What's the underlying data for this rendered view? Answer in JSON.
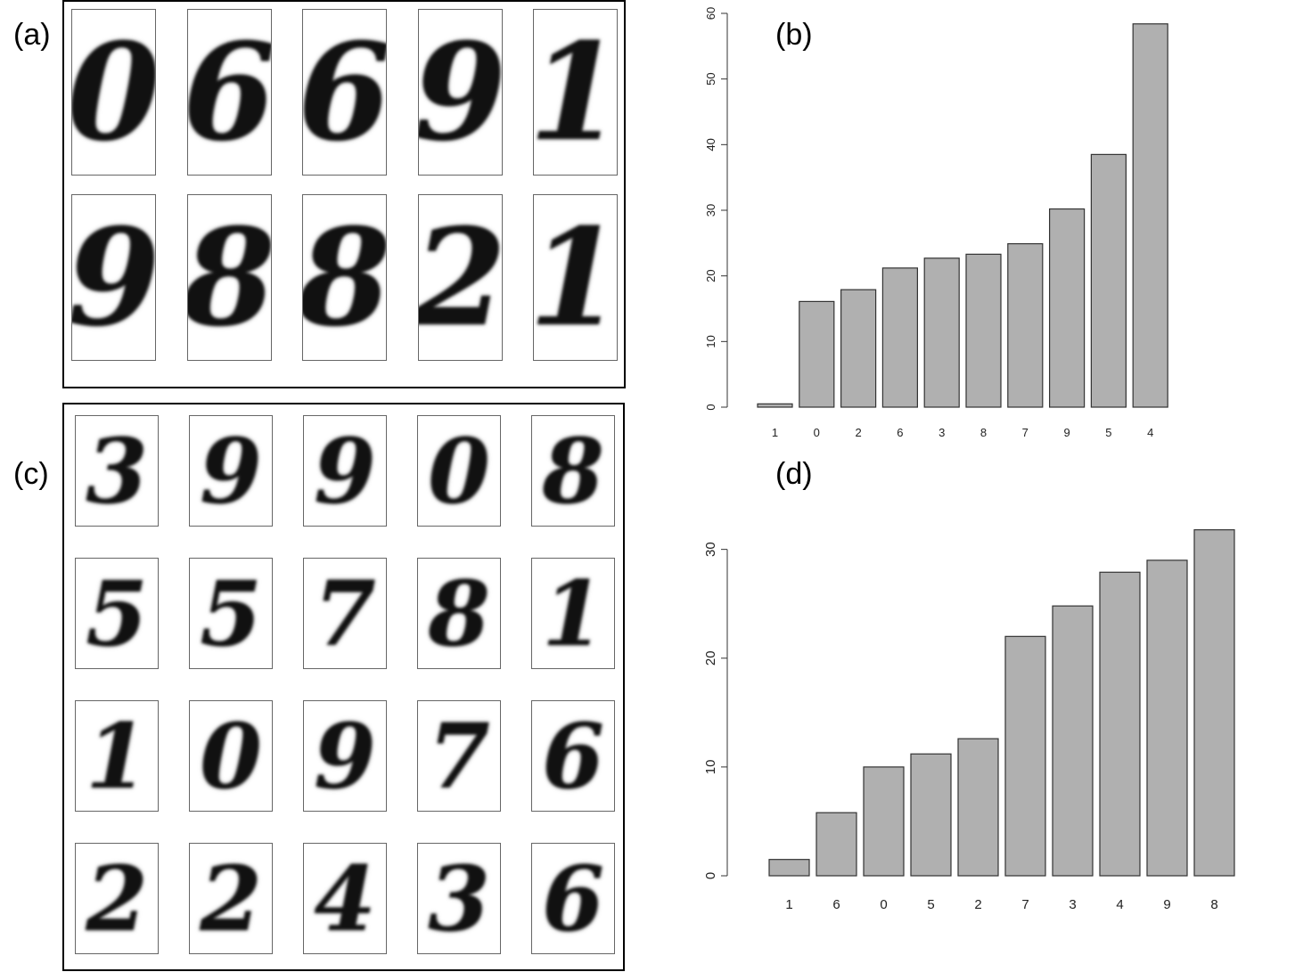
{
  "labels": {
    "a": "(a)",
    "b": "(b)",
    "c": "(c)",
    "d": "(d)"
  },
  "panel_a": {
    "digits": [
      "0",
      "6",
      "6",
      "9",
      "1",
      "9",
      "8",
      "8",
      "2",
      "1"
    ]
  },
  "panel_c": {
    "digits": [
      "3",
      "9",
      "9",
      "0",
      "8",
      "5",
      "5",
      "7",
      "8",
      "1",
      "1",
      "0",
      "9",
      "7",
      "6",
      "2",
      "2",
      "4",
      "3",
      "6"
    ]
  },
  "chart_data": [
    {
      "id": "b",
      "type": "bar",
      "title": "(b)",
      "categories": [
        "1",
        "0",
        "2",
        "6",
        "3",
        "8",
        "7",
        "9",
        "5",
        "4"
      ],
      "values": [
        0.5,
        16.1,
        17.9,
        21.2,
        22.7,
        23.3,
        24.9,
        30.2,
        38.5,
        58.4
      ],
      "ylim": [
        0,
        60
      ],
      "yticks": [
        0,
        10,
        20,
        30,
        40,
        50,
        60
      ],
      "bar_color": "#b0b0b0",
      "grid": false
    },
    {
      "id": "d",
      "type": "bar",
      "title": "(d)",
      "categories": [
        "1",
        "6",
        "0",
        "5",
        "2",
        "7",
        "3",
        "4",
        "9",
        "8"
      ],
      "values": [
        1.5,
        5.8,
        10.0,
        11.2,
        12.6,
        22.0,
        24.8,
        27.9,
        29.0,
        31.8
      ],
      "ylim": [
        0,
        33
      ],
      "yticks": [
        0,
        10,
        20,
        30
      ],
      "bar_color": "#b0b0b0",
      "grid": false
    }
  ]
}
